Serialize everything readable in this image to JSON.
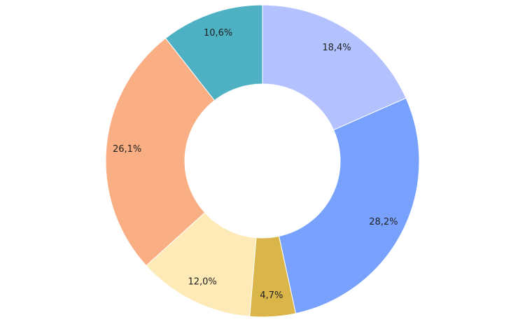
{
  "chart_data": {
    "type": "pie",
    "variant": "donut",
    "categories": [
      "",
      "",
      "",
      "",
      "",
      ""
    ],
    "values": [
      18.4,
      28.2,
      4.7,
      12.0,
      26.1,
      10.6
    ],
    "labels": [
      "18,4%",
      "28,2%",
      "4,7%",
      "12,0%",
      "26,1%",
      "10,6%"
    ],
    "colors": [
      "#b3c2fe",
      "#78a1fe",
      "#d9b54a",
      "#feeab6",
      "#f9ae84",
      "#4eb0c3"
    ],
    "title": "",
    "legend": "none",
    "start": "top",
    "direction": "clockwise"
  }
}
